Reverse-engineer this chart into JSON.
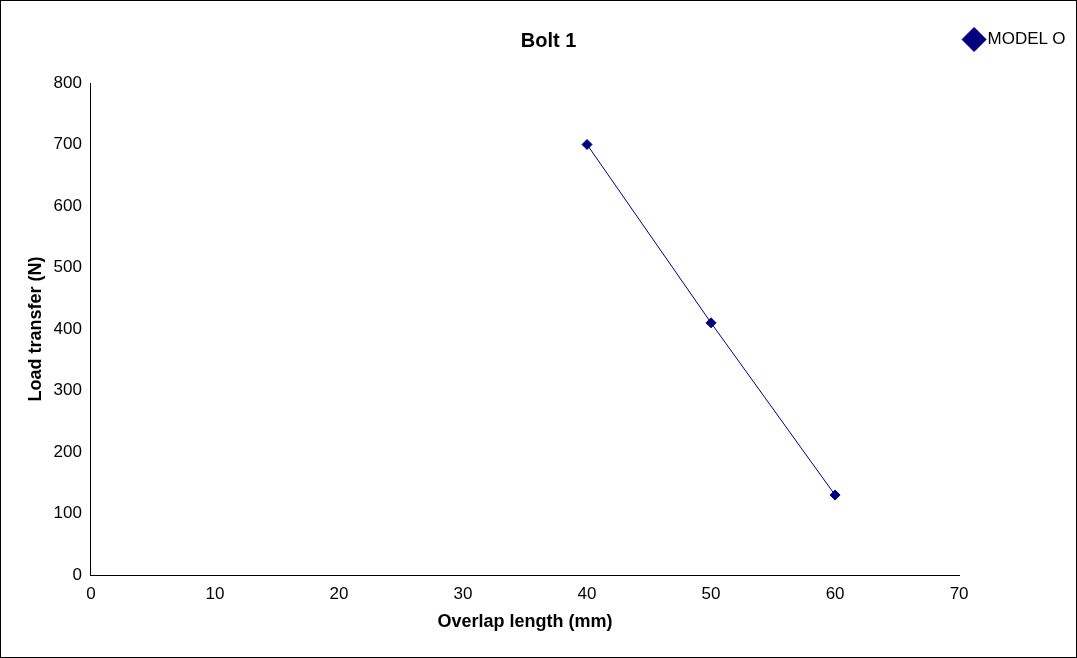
{
  "chart_data": {
    "type": "line",
    "title": "Bolt 1",
    "xlabel": "Overlap length (mm)",
    "ylabel": "Load transfer (N)",
    "x": [
      40,
      50,
      60
    ],
    "series": [
      {
        "name": "MODEL O",
        "color": "#000080",
        "values": [
          700,
          410,
          130
        ]
      }
    ],
    "xlim": [
      0,
      70
    ],
    "xticks": [
      0,
      10,
      20,
      30,
      40,
      50,
      60,
      70
    ],
    "ylim": [
      0,
      800
    ],
    "yticks": [
      0,
      100,
      200,
      300,
      400,
      500,
      600,
      700,
      800
    ],
    "grid": false,
    "legend": "top right",
    "marker": "diamond",
    "line_style": "solid"
  }
}
